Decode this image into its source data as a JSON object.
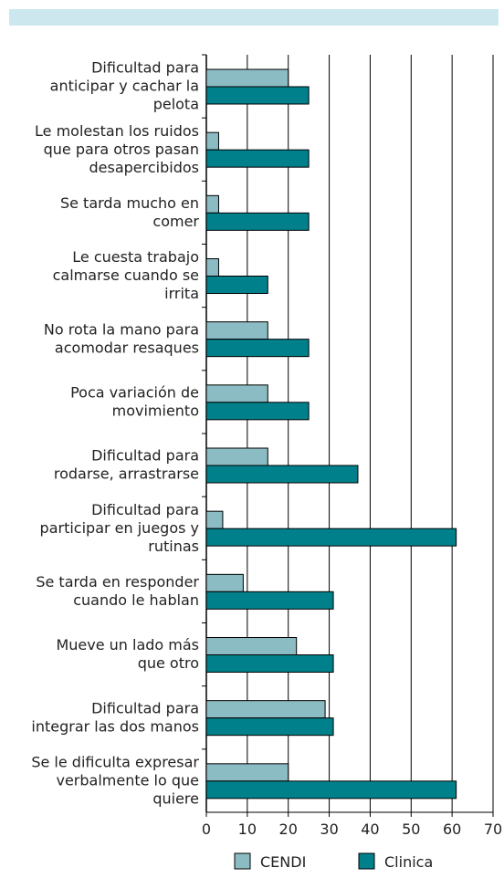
{
  "chart_data": {
    "type": "hbar",
    "categories": [
      "Dificultad para\nanticipar y cachar la\npelota",
      "Le molestan los ruidos\nque para otros pasan\ndesapercibidos",
      "Se tarda mucho en\ncomer",
      "Le cuesta trabajo\ncalmarse cuando se\nirrita",
      "No rota la mano para\nacomodar resaques",
      "Poca variación de\nmovimiento",
      "Dificultad para\nrodarse, arrastrarse",
      "Dificultad para\nparticipar en juegos y\nrutinas",
      "Se tarda en responder\ncuando le hablan",
      "Mueve un lado más\nque otro",
      "Dificultad para\nintegrar las dos manos",
      "Se le dificulta expresar\nverbalmente lo que\nquiere"
    ],
    "series": [
      {
        "name": "CENDI",
        "color": "#8bbcc4",
        "values": [
          20,
          3,
          3,
          3,
          15,
          15,
          15,
          4,
          9,
          22,
          29,
          20
        ]
      },
      {
        "name": "Clinica",
        "color": "#00808a",
        "values": [
          25,
          25,
          25,
          15,
          25,
          25,
          37,
          61,
          31,
          31,
          31,
          61
        ]
      }
    ],
    "xlim": [
      0,
      70
    ],
    "xticks": [
      0,
      10,
      20,
      30,
      40,
      50,
      60,
      70
    ],
    "grid": true,
    "legend": "bottom"
  }
}
